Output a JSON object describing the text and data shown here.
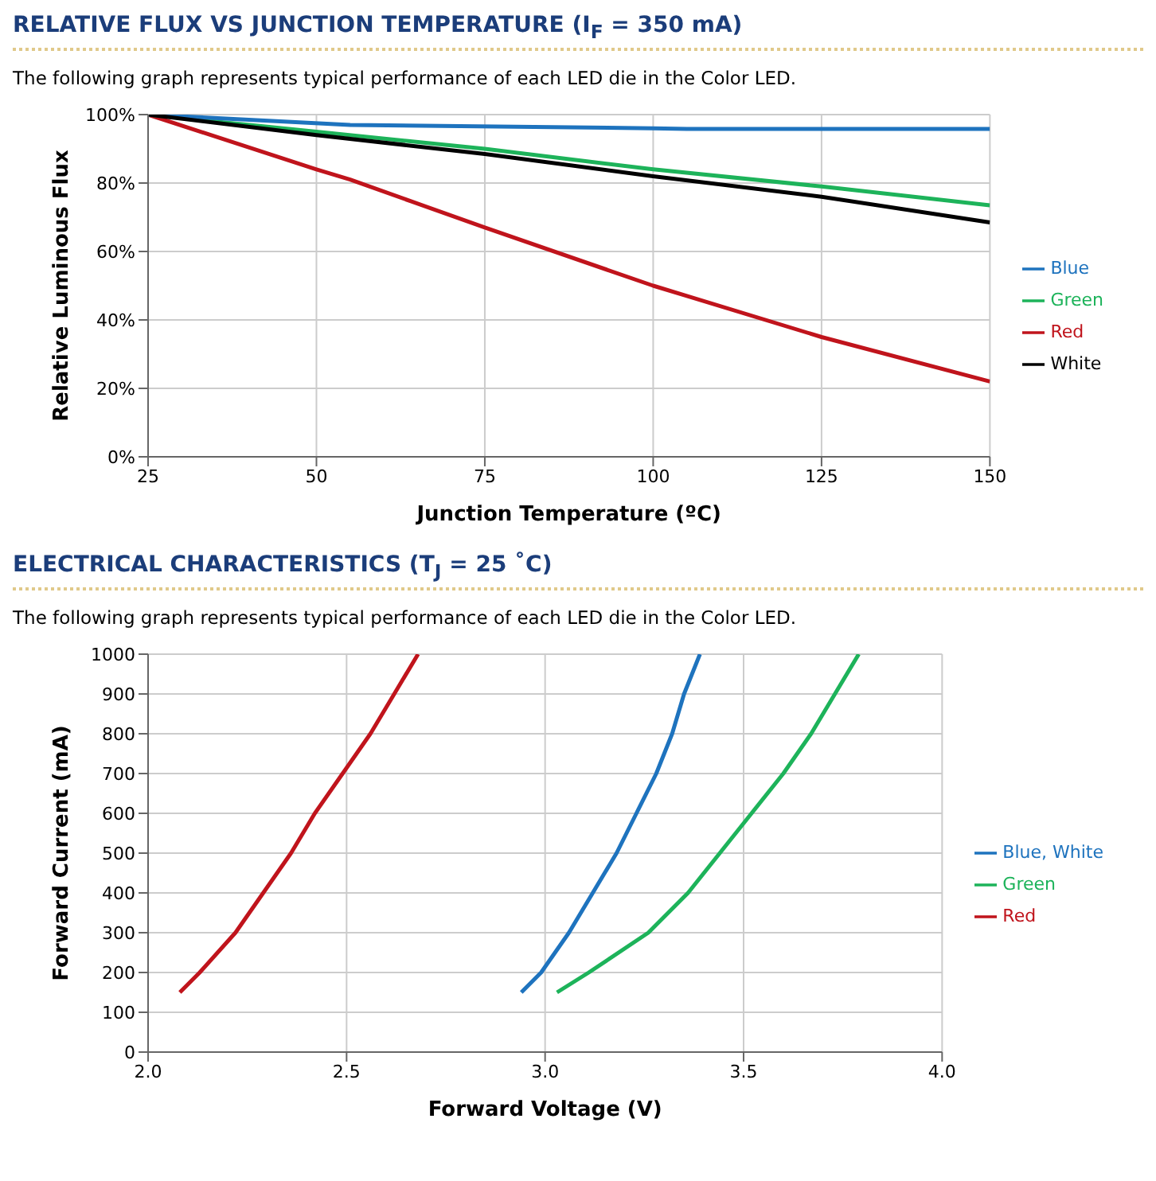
{
  "chart_data": [
    {
      "type": "line",
      "title": "RELATIVE FLUX VS JUNCTION TEMPERATURE (I$_{F}$ = 350 mA)",
      "subtitle": "The following graph represents typical performance of each LED die in the Color LED.",
      "xlabel": "Junction Temperature (ºC)",
      "ylabel": "Relative Luminous Flux",
      "xlim": [
        25,
        150
      ],
      "xticks": [
        25,
        50,
        75,
        100,
        125,
        150
      ],
      "ylim": [
        0,
        100
      ],
      "yticks": [
        {
          "value": 0,
          "label": "0%"
        },
        {
          "value": 20,
          "label": "20%"
        },
        {
          "value": 40,
          "label": "40%"
        },
        {
          "value": 60,
          "label": "60%"
        },
        {
          "value": 80,
          "label": "80%"
        },
        {
          "value": 100,
          "label": "100%"
        }
      ],
      "grid": true,
      "legend": "right",
      "marker": "none",
      "line_style": "solid",
      "series": [
        {
          "name": "Red",
          "color": "#c0141c",
          "x": [
            25,
            50,
            55,
            75,
            100,
            105,
            125,
            150
          ],
          "values": [
            100,
            84,
            81,
            67,
            50,
            47,
            35,
            22
          ]
        },
        {
          "name": "Green",
          "color": "#1db35a",
          "x": [
            25,
            50,
            75,
            100,
            125,
            150
          ],
          "values": [
            100,
            95,
            90,
            84,
            79,
            73.5
          ]
        },
        {
          "name": "Blue",
          "color": "#1e73be",
          "x": [
            25,
            55,
            100,
            105,
            150
          ],
          "values": [
            100,
            97,
            96,
            95.8,
            95.8
          ]
        },
        {
          "name": "White",
          "color": "#000000",
          "x": [
            25,
            50,
            75,
            100,
            125,
            150
          ],
          "values": [
            100,
            94,
            88.5,
            82,
            76,
            68.5
          ]
        }
      ]
    },
    {
      "type": "line",
      "title": "ELECTRICAL CHARACTERISTICS (T$_{J}$ = 25 ˚C)",
      "subtitle": "The following graph represents typical performance of each LED die in the Color LED.",
      "xlabel": "Forward Voltage (V)",
      "ylabel": "Forward Current (mA)",
      "xlim": [
        2,
        4
      ],
      "xticks": [
        {
          "value": 2,
          "label": "2.0"
        },
        2.5,
        {
          "value": 3,
          "label": "3.0"
        },
        3.5,
        {
          "value": 4,
          "label": "4.0"
        }
      ],
      "ylim": [
        0,
        1000
      ],
      "yticks": [
        0,
        100,
        200,
        300,
        400,
        500,
        600,
        700,
        800,
        900,
        1000
      ],
      "grid": true,
      "legend": "right",
      "marker": "none",
      "line_style": "solid",
      "series": [
        {
          "name": "Red",
          "color": "#c0141c",
          "x": [
            2.08,
            2.13,
            2.22,
            2.29,
            2.36,
            2.42,
            2.49,
            2.56,
            2.62,
            2.68
          ],
          "values": [
            150,
            200,
            300,
            400,
            500,
            600,
            700,
            800,
            900,
            1000
          ]
        },
        {
          "name": "Green",
          "color": "#1db35a",
          "x": [
            3.03,
            3.11,
            3.26,
            3.36,
            3.44,
            3.52,
            3.6,
            3.67,
            3.73,
            3.79
          ],
          "values": [
            150,
            200,
            300,
            400,
            500,
            600,
            700,
            800,
            900,
            1000
          ]
        },
        {
          "name": "Blue, White",
          "color": "#1e73be",
          "x": [
            2.94,
            2.99,
            3.06,
            3.12,
            3.18,
            3.23,
            3.28,
            3.32,
            3.35,
            3.39
          ],
          "values": [
            150,
            200,
            300,
            400,
            500,
            600,
            700,
            800,
            900,
            1000
          ]
        }
      ]
    }
  ]
}
